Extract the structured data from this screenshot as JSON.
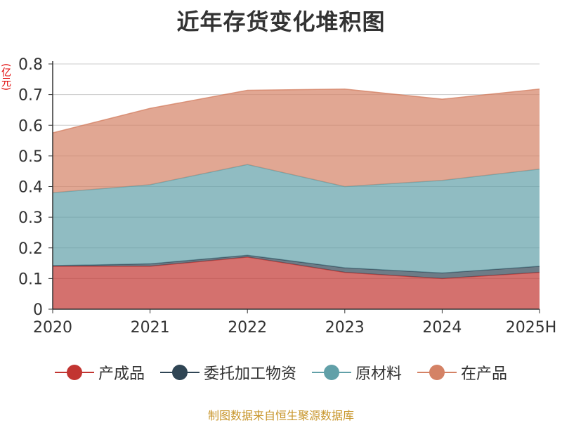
{
  "chart_data": {
    "type": "area",
    "stacked": true,
    "title": "近年存货变化堆积图",
    "unit_label": "(亿元)",
    "categories": [
      "2020",
      "2021",
      "2022",
      "2023",
      "2024",
      "2025H"
    ],
    "ylim": [
      0,
      0.8
    ],
    "yticks": [
      "0",
      "0.1",
      "0.2",
      "0.3",
      "0.4",
      "0.5",
      "0.6",
      "0.7",
      "0.8"
    ],
    "grid": true,
    "legend_position": "bottom",
    "series": [
      {
        "name": "产成品",
        "color": "#c23531",
        "values": [
          0.14,
          0.14,
          0.17,
          0.12,
          0.1,
          0.12
        ]
      },
      {
        "name": "委托加工物资",
        "color": "#2f4554",
        "values": [
          0.002,
          0.008,
          0.006,
          0.015,
          0.018,
          0.02
        ]
      },
      {
        "name": "原材料",
        "color": "#61a0a8",
        "values": [
          0.238,
          0.258,
          0.296,
          0.265,
          0.302,
          0.317
        ]
      },
      {
        "name": "在产品",
        "color": "#d48265",
        "values": [
          0.195,
          0.249,
          0.242,
          0.318,
          0.265,
          0.261
        ]
      }
    ]
  },
  "source_text": "制图数据来自恒生聚源数据库"
}
